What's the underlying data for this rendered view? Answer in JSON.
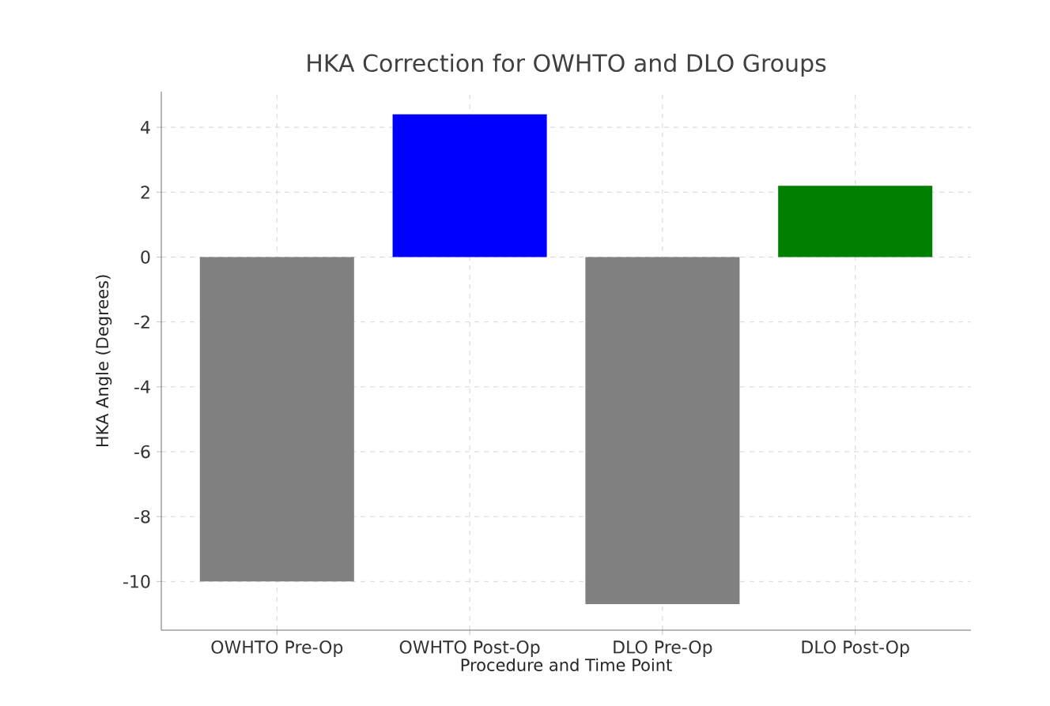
{
  "chart_data": {
    "type": "bar",
    "title": "HKA Correction for OWHTO and DLO Groups",
    "xlabel": "Procedure and Time Point",
    "ylabel": "HKA Angle (Degrees)",
    "categories": [
      "OWHTO Pre-Op",
      "OWHTO Post-Op",
      "DLO Pre-Op",
      "DLO Post-Op"
    ],
    "values": [
      -10.0,
      4.4,
      -10.7,
      2.2
    ],
    "colors": [
      "#808080",
      "#0000ff",
      "#808080",
      "#008000"
    ],
    "ylim": [
      -11.5,
      5.1
    ],
    "yticks": [
      -10,
      -8,
      -6,
      -4,
      -2,
      0,
      2,
      4
    ],
    "grid": true
  }
}
